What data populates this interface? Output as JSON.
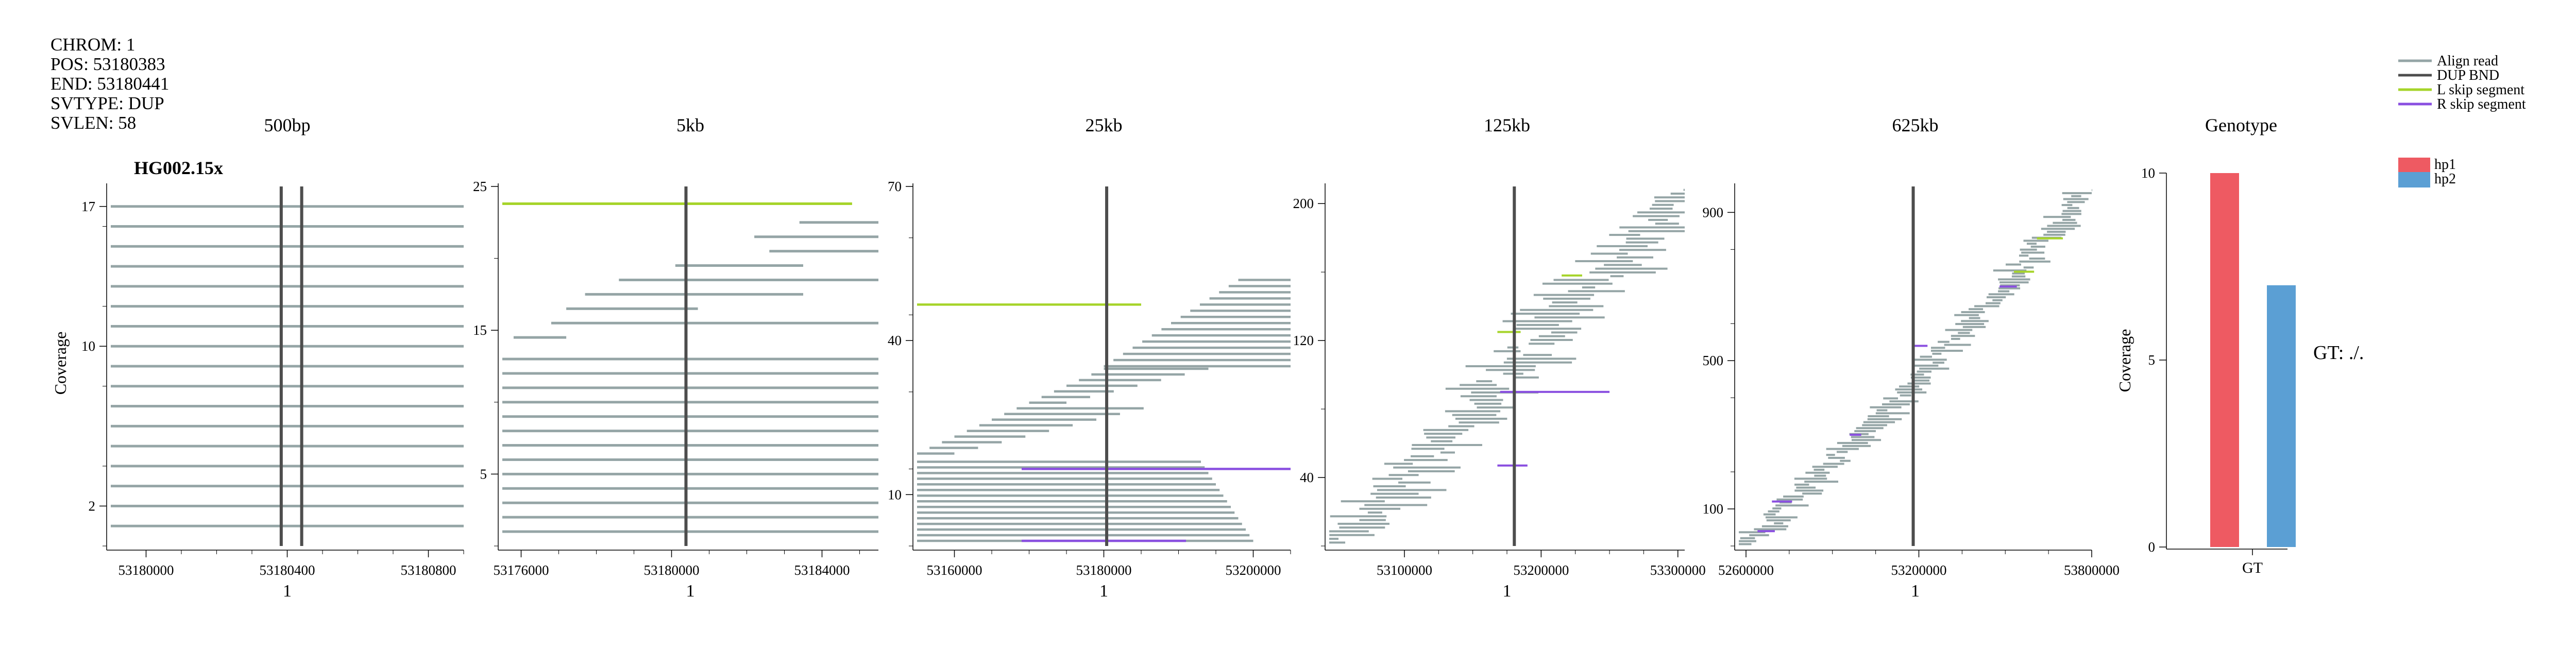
{
  "info_lines": [
    "CHROM: 1",
    "POS: 53180383",
    "END: 53180441",
    "SVTYPE: DUP",
    "SVLEN: 58"
  ],
  "sample_label": "HG002.15x",
  "y_axis_label": "Coverage",
  "x_axis_label": "1",
  "colors": {
    "align_read": "#95a5a6",
    "bnd": "#4d4d4d",
    "l_skip": "#a6d42a",
    "r_skip": "#8a4fe0",
    "hp1": "#ee5a62",
    "hp2": "#5b9fd4"
  },
  "legend": [
    {
      "label": "Align read",
      "color_key": "align_read"
    },
    {
      "label": "DUP BND",
      "color_key": "bnd"
    },
    {
      "label": "L skip segment",
      "color_key": "l_skip"
    },
    {
      "label": "R skip segment",
      "color_key": "r_skip"
    }
  ],
  "hp_legend": [
    {
      "label": "hp1",
      "color_key": "hp1"
    },
    {
      "label": "hp2",
      "color_key": "hp2"
    }
  ],
  "gt_text": "GT: ./.",
  "chart_data": [
    {
      "type": "read-pileup",
      "title": "500bp",
      "xlim": [
        53179900,
        53180900
      ],
      "ylim": [
        0,
        18
      ],
      "xticks": [
        53180000,
        53180400,
        53180800
      ],
      "yticks": [
        2,
        10,
        17
      ],
      "bnd": [
        53180383,
        53180441
      ],
      "reads": [
        {
          "count": 17,
          "y_start": 1,
          "y_step": 1,
          "x_start": 53179900,
          "x_end": 53180900
        }
      ],
      "segments": []
    },
    {
      "type": "read-pileup",
      "title": "5kb",
      "xlim": [
        53175500,
        53185500
      ],
      "ylim": [
        0,
        25
      ],
      "xticks": [
        53176000,
        53180000,
        53184000
      ],
      "yticks": [
        5,
        15,
        25
      ],
      "bnd": [
        53180383
      ],
      "reads": [
        {
          "count": 13,
          "y_start": 1,
          "y_step": 1,
          "x_start": 53175500,
          "x_end": 53185500
        },
        {
          "y": 14.5,
          "x_start": 53175800,
          "x_end": 53177200
        },
        {
          "y": 15.5,
          "x_start": 53176800,
          "x_end": 53185500
        },
        {
          "y": 16.5,
          "x_start": 53177200,
          "x_end": 53180700
        },
        {
          "y": 17.5,
          "x_start": 53177700,
          "x_end": 53183500
        },
        {
          "y": 18.5,
          "x_start": 53178600,
          "x_end": 53185500
        },
        {
          "y": 19.5,
          "x_start": 53180100,
          "x_end": 53183500
        },
        {
          "y": 20.5,
          "x_start": 53182600,
          "x_end": 53185500
        },
        {
          "y": 21.5,
          "x_start": 53182200,
          "x_end": 53185500
        },
        {
          "y": 22.5,
          "x_start": 53183400,
          "x_end": 53185500
        }
      ],
      "segments": [
        {
          "type": "l_skip",
          "y": 23.8,
          "x_start": 53175500,
          "x_end": 53184800
        }
      ]
    },
    {
      "type": "read-pileup",
      "title": "25kb",
      "xlim": [
        53155000,
        53205000
      ],
      "ylim": [
        0,
        70
      ],
      "xticks": [
        53160000,
        53180000,
        53200000
      ],
      "yticks": [
        10,
        40,
        70
      ],
      "bnd": [
        53180383
      ],
      "reads": [
        {
          "count": 15,
          "y_start": 1,
          "y_step": 1.1,
          "x_start": 53155000,
          "x_end_from": 53200000,
          "x_end_to": 53193000
        },
        {
          "count": 16,
          "y_start": 18,
          "y_step": 1.1,
          "x_start": 53155000,
          "x_end": 53160000,
          "x_start_to": 53180000
        },
        {
          "count": 15,
          "y_start": 35,
          "y_step": 1.2,
          "x_start": 53180000,
          "x_start_to": 53198000,
          "x_end": 53205000
        }
      ],
      "segments": [
        {
          "type": "l_skip",
          "y": 47,
          "x_start": 53155000,
          "x_end": 53185000
        },
        {
          "type": "r_skip",
          "y": 15,
          "x_start": 53169000,
          "x_end": 53205000
        },
        {
          "type": "r_skip",
          "y": 1,
          "x_start": 53169000,
          "x_end": 53191000
        }
      ]
    },
    {
      "type": "read-pileup",
      "title": "125kb",
      "xlim": [
        53045000,
        53305000
      ],
      "ylim": [
        0,
        210
      ],
      "xticks": [
        53100000,
        53200000,
        53300000
      ],
      "yticks": [
        40,
        120,
        200
      ],
      "bnd": [
        53180383
      ],
      "diagonal": {
        "n": 95,
        "y_from": 2,
        "y_to": 208,
        "x_from": 53045000,
        "x_to": 53300000,
        "len_min": 8000,
        "len_max": 55000
      },
      "segments": [
        {
          "type": "l_skip",
          "y": 125,
          "x_start": 53168000,
          "x_end": 53185000
        },
        {
          "type": "l_skip",
          "y": 158,
          "x_start": 53215000,
          "x_end": 53230000
        },
        {
          "type": "r_skip",
          "y": 90,
          "x_start": 53170000,
          "x_end": 53250000
        },
        {
          "type": "r_skip",
          "y": 47,
          "x_start": 53168000,
          "x_end": 53190000
        }
      ]
    },
    {
      "type": "read-pileup",
      "title": "625kb",
      "xlim": [
        52575000,
        53800000
      ],
      "ylim": [
        0,
        970
      ],
      "xticks": [
        52600000,
        53200000,
        53800000
      ],
      "yticks": [
        100,
        500,
        900
      ],
      "bnd": [
        53180383
      ],
      "diagonal": {
        "n": 120,
        "y_from": 5,
        "y_to": 960,
        "x_from": 52590000,
        "x_to": 53790000,
        "len_min": 30000,
        "len_max": 120000
      },
      "segments": [
        {
          "type": "l_skip",
          "y": 830,
          "x_start": 53610000,
          "x_end": 53700000
        },
        {
          "type": "l_skip",
          "y": 740,
          "x_start": 53530000,
          "x_end": 53600000
        },
        {
          "type": "r_skip",
          "y": 700,
          "x_start": 53480000,
          "x_end": 53540000
        },
        {
          "type": "r_skip",
          "y": 540,
          "x_start": 53180000,
          "x_end": 53230000
        },
        {
          "type": "r_skip",
          "y": 300,
          "x_start": 52960000,
          "x_end": 53000000
        },
        {
          "type": "r_skip",
          "y": 120,
          "x_start": 52690000,
          "x_end": 52760000
        },
        {
          "type": "r_skip",
          "y": 40,
          "x_start": 52640000,
          "x_end": 52700000
        }
      ]
    },
    {
      "type": "bar",
      "title": "Genotype",
      "categories": [
        "GT"
      ],
      "ylim": [
        0,
        10
      ],
      "yticks": [
        0,
        5,
        10
      ],
      "ylabel": "Coverage",
      "series": [
        {
          "name": "hp1",
          "values": [
            10
          ]
        },
        {
          "name": "hp2",
          "values": [
            7
          ]
        }
      ]
    }
  ]
}
